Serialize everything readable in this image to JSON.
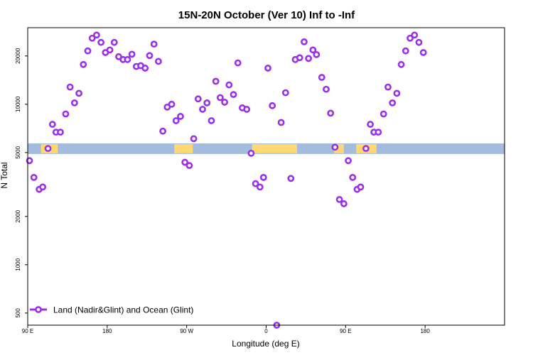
{
  "chart_data": {
    "type": "scatter",
    "title": "15N-20N October (Ver 10)   Inf to -Inf",
    "xlabel": "Longitude (deg E)",
    "ylabel": "N Total",
    "y_scale": "log",
    "x_domain": [
      0,
      540
    ],
    "ylim": [
      420,
      30000
    ],
    "x_ticks": [
      {
        "pos": 0,
        "label": "90 E"
      },
      {
        "pos": 90,
        "label": "180"
      },
      {
        "pos": 180,
        "label": "90 W"
      },
      {
        "pos": 270,
        "label": "0"
      },
      {
        "pos": 360,
        "label": "90 E"
      },
      {
        "pos": 450,
        "label": "180"
      }
    ],
    "y_ticks": [
      {
        "value": 500,
        "label": "500"
      },
      {
        "value": 1000,
        "label": "1000"
      },
      {
        "value": 2000,
        "label": "2000"
      },
      {
        "value": 5000,
        "label": "5000"
      },
      {
        "value": 10000,
        "label": "10000"
      },
      {
        "value": 20000,
        "label": "20000"
      }
    ],
    "map_strip": {
      "y_range": [
        4900,
        5700
      ],
      "ocean_color": "#a3bbdd",
      "land_color": "#ffd970",
      "land_ranges": [
        [
          15,
          34
        ],
        [
          166,
          187
        ],
        [
          254,
          305
        ],
        [
          347,
          358
        ],
        [
          372,
          395
        ]
      ]
    },
    "legend": {
      "label": "Land (Nadir&Glint) and Ocean (Glint)",
      "position": "bottom-left"
    },
    "series": [
      {
        "name": "Land (Nadir&Glint) and Ocean (Glint)",
        "color": "#9b30e8",
        "points": [
          [
            2,
            4450
          ],
          [
            7,
            3500
          ],
          [
            13,
            2950
          ],
          [
            17,
            3050
          ],
          [
            23,
            5300
          ],
          [
            28,
            7500
          ],
          [
            32,
            6700
          ],
          [
            37,
            6700
          ],
          [
            43,
            8700
          ],
          [
            48,
            12800
          ],
          [
            53,
            10200
          ],
          [
            58,
            11700
          ],
          [
            63,
            17700
          ],
          [
            68,
            21500
          ],
          [
            73,
            25800
          ],
          [
            78,
            27000
          ],
          [
            83,
            24300
          ],
          [
            88,
            21000
          ],
          [
            93,
            21800
          ],
          [
            98,
            24300
          ],
          [
            103,
            19800
          ],
          [
            108,
            19000
          ],
          [
            113,
            19000
          ],
          [
            118,
            20500
          ],
          [
            123,
            17200
          ],
          [
            128,
            17400
          ],
          [
            133,
            16800
          ],
          [
            138,
            20100
          ],
          [
            143,
            23700
          ],
          [
            148,
            18500
          ],
          [
            153,
            6800
          ],
          [
            158,
            9600
          ],
          [
            163,
            10000
          ],
          [
            168,
            7900
          ],
          [
            173,
            8400
          ],
          [
            178,
            4350
          ],
          [
            183,
            4150
          ],
          [
            188,
            6100
          ],
          [
            193,
            10800
          ],
          [
            198,
            9300
          ],
          [
            203,
            10200
          ],
          [
            208,
            7900
          ],
          [
            213,
            13900
          ],
          [
            218,
            11000
          ],
          [
            223,
            10300
          ],
          [
            228,
            13200
          ],
          [
            233,
            11500
          ],
          [
            238,
            18100
          ],
          [
            243,
            9500
          ],
          [
            248,
            9300
          ],
          [
            253,
            4950
          ],
          [
            258,
            3200
          ],
          [
            263,
            3050
          ],
          [
            267,
            3500
          ],
          [
            272,
            16800
          ],
          [
            277,
            9800
          ],
          [
            282,
            420
          ],
          [
            287,
            7700
          ],
          [
            292,
            11800
          ],
          [
            298,
            3450
          ],
          [
            303,
            19000
          ],
          [
            308,
            19500
          ],
          [
            313,
            24500
          ],
          [
            318,
            19300
          ],
          [
            323,
            21800
          ],
          [
            327,
            20400
          ],
          [
            333,
            14700
          ],
          [
            338,
            12400
          ],
          [
            343,
            8800
          ],
          [
            348,
            5400
          ],
          [
            353,
            2550
          ],
          [
            358,
            2400
          ],
          [
            363,
            4450
          ],
          [
            368,
            3500
          ],
          [
            373,
            2950
          ],
          [
            377,
            3050
          ],
          [
            383,
            5300
          ],
          [
            388,
            7500
          ],
          [
            392,
            6700
          ],
          [
            397,
            6700
          ],
          [
            403,
            8700
          ],
          [
            408,
            12800
          ],
          [
            413,
            10200
          ],
          [
            418,
            11700
          ],
          [
            423,
            17700
          ],
          [
            428,
            21500
          ],
          [
            433,
            25800
          ],
          [
            438,
            27000
          ],
          [
            443,
            24300
          ],
          [
            448,
            21000
          ]
        ]
      }
    ]
  }
}
